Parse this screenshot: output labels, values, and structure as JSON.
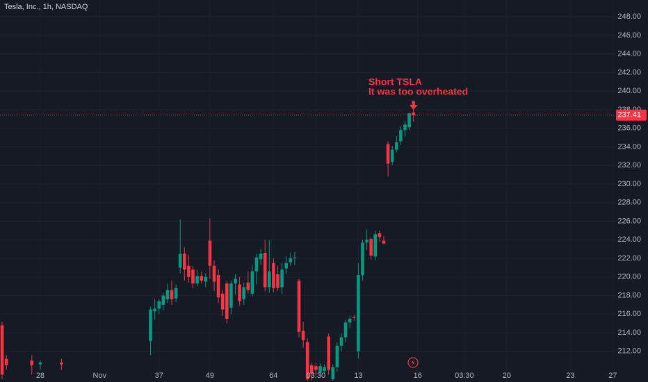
{
  "chart_data": {
    "type": "candlestick",
    "title": "Tesla, Inc., 1h, NASDAQ",
    "annotation": [
      "Short TSLA",
      "It was too overheated"
    ],
    "up_color": "#089981",
    "down_color": "#f23645",
    "grid": true,
    "x": [
      0,
      1,
      7,
      9,
      14,
      35,
      36,
      37,
      38,
      39,
      40,
      41,
      42,
      43,
      44,
      45,
      46,
      47,
      48,
      49,
      50,
      51,
      52,
      53,
      54,
      55,
      56,
      57,
      58,
      59,
      60,
      61,
      62,
      63,
      64,
      65,
      66,
      67,
      68,
      69,
      70,
      71,
      72,
      73,
      74,
      75,
      76,
      77,
      78,
      79,
      80,
      81,
      82,
      83,
      84,
      85,
      86,
      87,
      88,
      89,
      90,
      91,
      92,
      93,
      94,
      95,
      96,
      97
    ],
    "open": [
      214.8,
      211.2,
      211.0,
      210.6,
      210.8,
      213.1,
      216.3,
      216.6,
      217.0,
      217.6,
      218.6,
      217.7,
      221.0,
      222.5,
      221.2,
      220.8,
      219.3,
      220.1,
      219.5,
      223.9,
      221.2,
      220.2,
      218.2,
      219.3,
      216.7,
      219.3,
      219.2,
      217.6,
      219.4,
      218.2,
      220.6,
      221.9,
      222.6,
      218.9,
      221.5,
      220.3,
      218.9,
      220.9,
      221.6,
      222.0,
      219.6,
      214.2,
      213.0,
      210.5,
      210.4,
      209.7,
      209.9,
      213.6,
      209.0,
      210.3,
      212.6,
      213.5,
      215.1,
      215.7,
      212.0,
      220.2,
      223.7,
      224.1,
      222.2,
      224.7,
      223.9,
      234.3,
      232.4,
      233.7,
      234.6,
      235.8,
      236.1,
      237.7
    ],
    "high": [
      215.2,
      211.6,
      211.6,
      211.0,
      211.2,
      216.8,
      217.6,
      217.6,
      218.3,
      219.3,
      219.6,
      219.2,
      226.2,
      223.2,
      222.4,
      221.2,
      220.8,
      220.6,
      220.4,
      226.3,
      221.8,
      220.8,
      218.6,
      219.6,
      219.6,
      220.3,
      220.0,
      219.4,
      220.6,
      221.3,
      222.5,
      223.0,
      224.0,
      224.0,
      222.0,
      221.2,
      221.5,
      222.2,
      222.6,
      222.7,
      219.8,
      215.2,
      213.4,
      210.8,
      210.7,
      210.7,
      210.6,
      213.9,
      210.6,
      213.0,
      213.9,
      215.4,
      215.8,
      215.9,
      221.5,
      224.0,
      225.1,
      224.3,
      225.0,
      225.0,
      224.4,
      234.6,
      234.1,
      235.2,
      236.2,
      236.8,
      237.7,
      238.2
    ],
    "low": [
      209.0,
      210.0,
      209.5,
      210.0,
      210.0,
      211.6,
      215.4,
      216.0,
      216.4,
      217.2,
      217.0,
      217.3,
      220.4,
      219.6,
      219.4,
      218.8,
      219.0,
      219.3,
      218.9,
      219.8,
      218.5,
      217.2,
      215.8,
      215.0,
      216.0,
      218.1,
      216.9,
      217.0,
      218.2,
      217.9,
      219.2,
      221.3,
      218.5,
      218.3,
      218.4,
      218.5,
      218.2,
      220.3,
      221.2,
      221.3,
      213.5,
      212.4,
      208.8,
      208.9,
      209.5,
      209.3,
      209.6,
      209.5,
      208.8,
      209.8,
      212.0,
      213.0,
      214.5,
      215.3,
      211.2,
      219.6,
      222.9,
      221.9,
      221.8,
      223.8,
      223.5,
      230.8,
      232.0,
      233.4,
      234.2,
      235.1,
      235.8,
      236.7
    ],
    "close": [
      209.5,
      210.5,
      210.5,
      210.8,
      210.6,
      216.5,
      216.6,
      217.4,
      218.0,
      218.6,
      217.6,
      218.8,
      222.5,
      220.8,
      220.0,
      219.3,
      220.1,
      219.6,
      220.0,
      221.2,
      219.5,
      217.8,
      216.5,
      215.5,
      219.3,
      219.8,
      217.4,
      218.9,
      218.6,
      220.6,
      222.1,
      222.5,
      218.9,
      220.6,
      218.8,
      218.8,
      220.8,
      221.5,
      222.0,
      222.1,
      214.1,
      213.2,
      209.0,
      209.6,
      210.0,
      210.4,
      210.3,
      210.0,
      210.3,
      212.6,
      213.5,
      215.1,
      215.5,
      215.6,
      220.2,
      223.7,
      224.0,
      222.3,
      224.6,
      224.3,
      223.6,
      232.2,
      233.7,
      234.5,
      235.8,
      236.4,
      237.6,
      237.4
    ],
    "last_price": 237.41,
    "xlim": [
      -0.5,
      144.6
    ],
    "xticks": [
      {
        "value": 9,
        "label": "28"
      },
      {
        "value": 23,
        "label": "Nov"
      },
      37,
      49,
      64,
      {
        "value": 74,
        "label": "03:30"
      },
      {
        "value": 84,
        "label": "13"
      },
      {
        "value": 98,
        "label": "16"
      },
      {
        "value": 109,
        "label": "03:30"
      },
      {
        "value": 119,
        "label": "20"
      },
      {
        "value": 134,
        "label": "23"
      },
      {
        "value": 144,
        "label": "27"
      }
    ],
    "ylim": [
      208.7,
      249.8
    ],
    "yticks": [
      {
        "value": 212,
        "label": "212.00"
      },
      {
        "value": 214,
        "label": "214.00"
      },
      {
        "value": 216,
        "label": "216.00"
      },
      {
        "value": 218,
        "label": "218.00"
      },
      {
        "value": 220,
        "label": "220.00"
      },
      {
        "value": 222,
        "label": "222.00"
      },
      {
        "value": 224,
        "label": "224.00"
      },
      {
        "value": 226,
        "label": "226.00"
      },
      {
        "value": 228,
        "label": "228.00"
      },
      {
        "value": 230,
        "label": "230.00"
      },
      {
        "value": 232,
        "label": "232.00"
      },
      {
        "value": 234,
        "label": "234.00"
      },
      {
        "value": 236,
        "label": "236.00"
      },
      {
        "value": 238,
        "label": "238.00"
      },
      {
        "value": 240,
        "label": "240.00"
      },
      {
        "value": 242,
        "label": "242.00"
      },
      {
        "value": 244,
        "label": "244.00"
      },
      {
        "value": 246,
        "label": "246.00"
      },
      {
        "value": 248,
        "label": "248.00"
      }
    ]
  }
}
